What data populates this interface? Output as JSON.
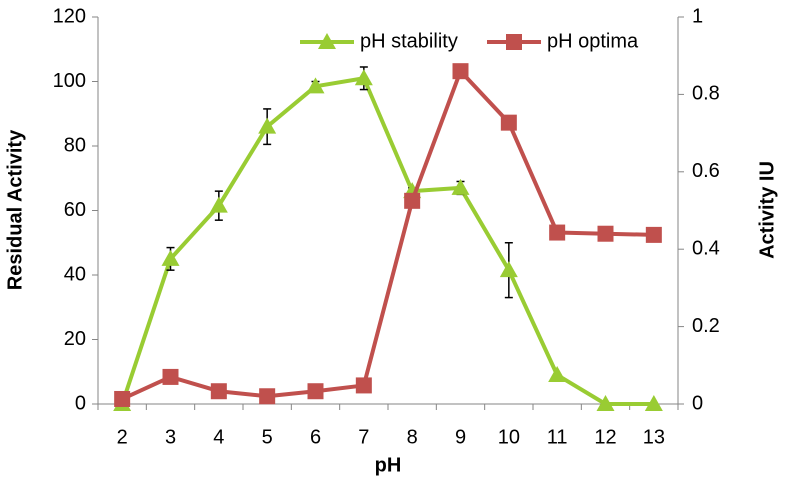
{
  "chart_data": {
    "type": "line",
    "x_label": "pH",
    "y_label": "Residual Activity",
    "y2_label": "Activity IU",
    "categories": [
      2,
      3,
      4,
      5,
      6,
      7,
      8,
      9,
      10,
      11,
      12,
      13
    ],
    "series": [
      {
        "name": "pH stability",
        "color": "#99cc33",
        "marker": "triangle",
        "values": [
          0,
          45,
          61.5,
          86,
          98.5,
          101,
          66,
          67,
          41.5,
          9,
          0,
          0
        ],
        "errors": [
          0,
          3.5,
          4.5,
          5.5,
          1.5,
          3.5,
          1,
          2,
          8.5,
          0,
          0,
          0
        ]
      },
      {
        "name": "pH optima",
        "color": "#c0504d",
        "marker": "square",
        "axis": "y2",
        "values": [
          0.013,
          0.07,
          0.033,
          0.02,
          0.033,
          0.048,
          0.525,
          0.86,
          0.727,
          0.443,
          0.44,
          0.437
        ]
      }
    ],
    "ylim": [
      0,
      120
    ],
    "yticks": [
      0,
      20,
      40,
      60,
      80,
      100,
      120
    ],
    "y2lim": [
      0,
      1
    ],
    "y2ticks": [
      0,
      0.2,
      0.4,
      0.6,
      0.8,
      1
    ],
    "grid": false,
    "legend": "top"
  }
}
